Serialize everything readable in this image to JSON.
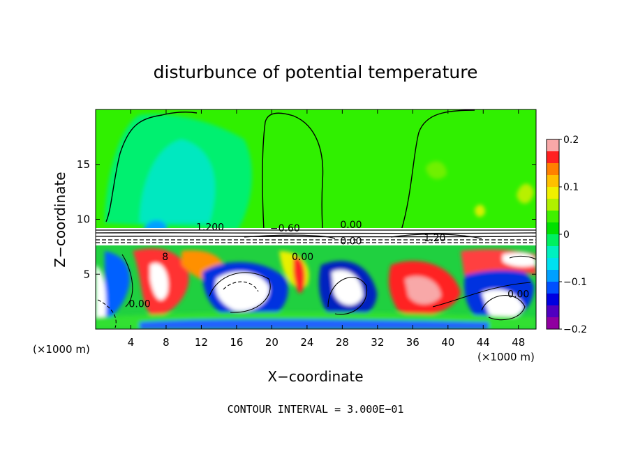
{
  "chart_data": {
    "type": "heatmap",
    "title": "disturbunce of potential temperature",
    "xlabel": "X−coordinate",
    "ylabel": "Z−coordinate",
    "x_unit_left": "(×1000 m)",
    "x_unit_right": "(×1000 m)",
    "footer": "CONTOUR INTERVAL = 3.000E−01",
    "xlim": [
      0,
      50
    ],
    "ylim": [
      0,
      20
    ],
    "x_ticks": [
      4,
      8,
      12,
      16,
      20,
      24,
      28,
      32,
      36,
      40,
      44,
      48
    ],
    "x_tick_labels": [
      "4",
      "8",
      "12",
      "16",
      "20",
      "24",
      "28",
      "32",
      "36",
      "40",
      "44",
      "48"
    ],
    "y_ticks": [
      5,
      10,
      15
    ],
    "y_tick_labels": [
      "5",
      "10",
      "15"
    ],
    "colorbar": {
      "range": [
        -0.2,
        0.2
      ],
      "tick_values": [
        0.2,
        0.1,
        0,
        -0.1,
        -0.2
      ],
      "tick_labels": [
        "0.2",
        "0.1",
        "0",
        "−0.1",
        "−0.2"
      ],
      "colors": [
        "#f8a8a8",
        "#ff2020",
        "#ff8000",
        "#ffc000",
        "#f0f000",
        "#b0f000",
        "#40f000",
        "#00e000",
        "#00f060",
        "#00f0c0",
        "#00e0f0",
        "#00a0ff",
        "#0050ff",
        "#0000e0",
        "#5000c0",
        "#9000a0"
      ]
    },
    "contour_labels": [
      {
        "text": "0.00",
        "x": 23.5,
        "z": 6.3
      },
      {
        "text": "8",
        "x": 7.9,
        "z": 6.3
      },
      {
        "text": "0.00",
        "x": 5.0,
        "z": 2.0
      },
      {
        "text": "0.00",
        "x": 29.0,
        "z": 7.7
      },
      {
        "text": "0.00",
        "x": 48.0,
        "z": 2.9
      },
      {
        "text": "−0.60",
        "x": 21.5,
        "z": 8.9
      },
      {
        "text": "0.00",
        "x": 29.0,
        "z": 9.2
      },
      {
        "text": "1.20",
        "x": 38.5,
        "z": 8.0
      },
      {
        "text": "1.200",
        "x": 13.0,
        "z": 9.0
      }
    ]
  }
}
